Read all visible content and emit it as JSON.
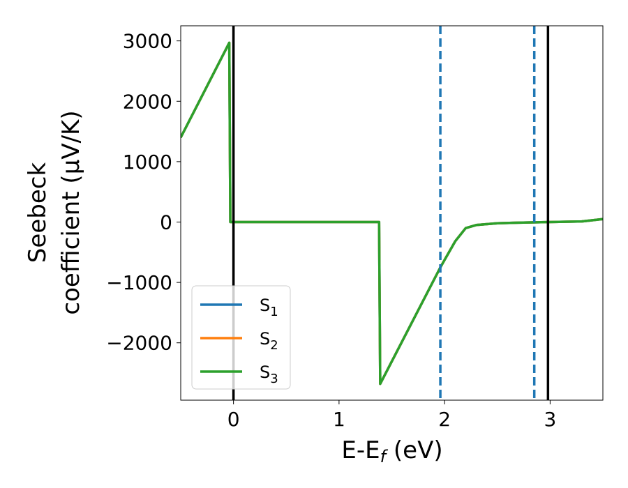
{
  "chart_data": {
    "type": "line",
    "xlabel_main": "E-E",
    "xlabel_sub": "f",
    "xlabel_unit": " (eV)",
    "ylabel_line1": "Seebeck",
    "ylabel_line2": "coefficient  (μV/K)",
    "xlim": [
      -0.5,
      3.5
    ],
    "ylim": [
      -2950,
      3250
    ],
    "xticks": [
      0,
      1,
      2,
      3
    ],
    "xtick_labels": [
      "0",
      "1",
      "2",
      "3"
    ],
    "yticks": [
      3000,
      2000,
      1000,
      0,
      -1000,
      -2000
    ],
    "ytick_labels": [
      "3000",
      "2000",
      "1000",
      "0",
      "−1000",
      "−2000"
    ],
    "series": [
      {
        "name": "S",
        "sub": "1",
        "color": "#1f77b4",
        "x": [
          -0.5,
          -0.04,
          -0.03,
          1.38,
          1.39,
          1.96,
          2.1,
          2.2,
          2.3,
          2.5,
          2.7,
          3.0,
          3.3,
          3.5
        ],
        "y": [
          1400,
          2970,
          0,
          0,
          -2680,
          -750,
          -320,
          -100,
          -50,
          -20,
          -10,
          0,
          10,
          50
        ]
      },
      {
        "name": "S",
        "sub": "2",
        "color": "#ff7f0e",
        "x": [
          -0.5,
          -0.04,
          -0.03,
          1.38,
          1.39,
          1.96,
          2.1,
          2.2,
          2.3,
          2.5,
          2.7,
          3.0,
          3.3,
          3.5
        ],
        "y": [
          1400,
          2970,
          0,
          0,
          -2680,
          -750,
          -320,
          -100,
          -50,
          -20,
          -10,
          0,
          10,
          50
        ]
      },
      {
        "name": "S",
        "sub": "3",
        "color": "#2ca02c",
        "x": [
          -0.5,
          -0.04,
          -0.03,
          1.38,
          1.39,
          1.96,
          2.1,
          2.2,
          2.3,
          2.5,
          2.7,
          3.0,
          3.3,
          3.5
        ],
        "y": [
          1400,
          2970,
          0,
          0,
          -2680,
          -750,
          -320,
          -100,
          -50,
          -20,
          -10,
          0,
          10,
          50
        ]
      }
    ],
    "vlines_solid": [
      0.0,
      2.98
    ],
    "vlines_dashed": [
      1.96,
      2.85
    ],
    "vline_solid_color": "#000000",
    "vline_dashed_color": "#1f77b4",
    "legend_position": "lower-left",
    "grid": false
  }
}
